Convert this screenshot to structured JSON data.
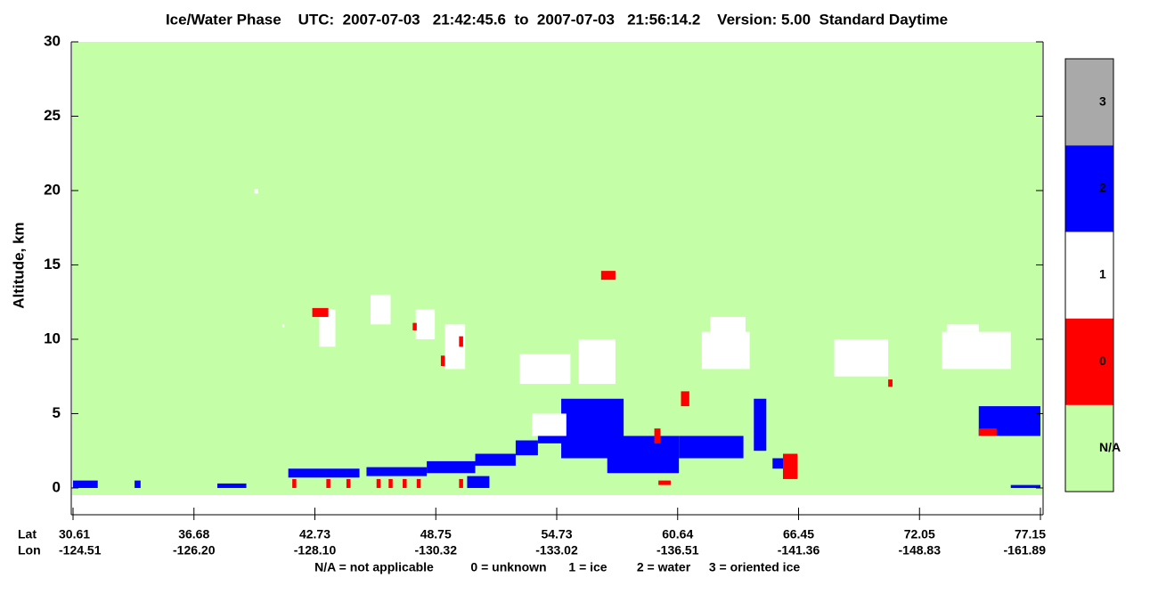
{
  "chart_data": {
    "type": "curtain",
    "title": "Ice/Water Phase    UTC:  2007-07-03   21:42:45.6  to  2007-07-03   21:56:14.2    Version: 5.00  Standard Daytime",
    "y_label": "Altitude, km",
    "x_row_labels": [
      "Lat",
      "Lon"
    ],
    "xticks": [
      30.61,
      36.68,
      42.73,
      48.75,
      54.73,
      60.64,
      66.45,
      72.05,
      77.15
    ],
    "lon_ticks": [
      -124.51,
      -126.2,
      -128.1,
      -130.32,
      -133.02,
      -136.51,
      -141.36,
      -148.83,
      -161.89
    ],
    "lon_tick_labels": [
      "-124.51",
      "-126.20",
      "-128.10",
      "-130.32",
      "-133.02",
      "-136.51",
      "-141.36",
      "-148.83",
      "-161.89"
    ],
    "ylim": [
      -1.8,
      30
    ],
    "yticks": [
      0,
      5,
      10,
      15,
      20,
      25,
      30
    ],
    "legend": {
      "categories": [
        "N/A",
        "0",
        "1",
        "2",
        "3"
      ],
      "colors": [
        "#c4ffa8",
        "#ff0000",
        "#ffffff",
        "#0000ff",
        "#a9a9a9"
      ],
      "descriptions": [
        "N/A = not applicable",
        "0 = unknown",
        "1 = ice",
        "2 = water",
        "3 = oriented ice"
      ]
    },
    "regions": [
      {
        "phase": 2,
        "lat": [
          30.61,
          31.85
        ],
        "alt": [
          0,
          0.5
        ]
      },
      {
        "phase": 2,
        "lat": [
          33.7,
          34.0
        ],
        "alt": [
          0,
          0.5
        ]
      },
      {
        "phase": 2,
        "lat": [
          37.85,
          39.3
        ],
        "alt": [
          0,
          0.3
        ]
      },
      {
        "phase": 2,
        "lat": [
          41.4,
          44.95
        ],
        "alt": [
          0.7,
          1.3
        ]
      },
      {
        "phase": 2,
        "lat": [
          45.3,
          48.3
        ],
        "alt": [
          0.8,
          1.4
        ]
      },
      {
        "phase": 2,
        "lat": [
          48.3,
          50.7
        ],
        "alt": [
          1.0,
          1.8
        ]
      },
      {
        "phase": 2,
        "lat": [
          50.7,
          52.7
        ],
        "alt": [
          1.5,
          2.3
        ]
      },
      {
        "phase": 2,
        "lat": [
          50.3,
          51.4
        ],
        "alt": [
          0,
          0.8
        ]
      },
      {
        "phase": 2,
        "lat": [
          52.7,
          53.8
        ],
        "alt": [
          2.2,
          3.2
        ]
      },
      {
        "phase": 2,
        "lat": [
          53.8,
          55.0
        ],
        "alt": [
          3,
          4.5
        ]
      },
      {
        "phase": 2,
        "lat": [
          54.95,
          58.0
        ],
        "alt": [
          2,
          6
        ]
      },
      {
        "phase": 2,
        "lat": [
          57.2,
          60.7
        ],
        "alt": [
          1,
          3.5
        ]
      },
      {
        "phase": 2,
        "lat": [
          60.7,
          63.8
        ],
        "alt": [
          2,
          3.5
        ]
      },
      {
        "phase": 2,
        "lat": [
          64.3,
          64.9
        ],
        "alt": [
          2.5,
          6
        ]
      },
      {
        "phase": 2,
        "lat": [
          65.2,
          66.1
        ],
        "alt": [
          1.3,
          2
        ]
      },
      {
        "phase": 2,
        "lat": [
          74.55,
          77.15
        ],
        "alt": [
          3.5,
          5.5
        ]
      },
      {
        "phase": 2,
        "lat": [
          75.9,
          77.15
        ],
        "alt": [
          0,
          0.2
        ]
      },
      {
        "phase": 1,
        "lat": [
          39.7,
          39.9
        ],
        "alt": [
          19.8,
          20.1
        ]
      },
      {
        "phase": 1,
        "lat": [
          42.95,
          43.75
        ],
        "alt": [
          9.5,
          12
        ]
      },
      {
        "phase": 1,
        "lat": [
          45.5,
          46.5
        ],
        "alt": [
          11,
          13
        ]
      },
      {
        "phase": 1,
        "lat": [
          47.75,
          48.7
        ],
        "alt": [
          10,
          12
        ]
      },
      {
        "phase": 1,
        "lat": [
          49.2,
          50.2
        ],
        "alt": [
          8,
          11
        ]
      },
      {
        "phase": 1,
        "lat": [
          52.9,
          55.4
        ],
        "alt": [
          7,
          9
        ]
      },
      {
        "phase": 1,
        "lat": [
          55.8,
          57.6
        ],
        "alt": [
          7,
          10
        ]
      },
      {
        "phase": 1,
        "lat": [
          61.8,
          64.1
        ],
        "alt": [
          8,
          10.5
        ]
      },
      {
        "phase": 1,
        "lat": [
          62.2,
          63.9
        ],
        "alt": [
          10,
          11.5
        ]
      },
      {
        "phase": 1,
        "lat": [
          68.1,
          70.6
        ],
        "alt": [
          7.5,
          10
        ]
      },
      {
        "phase": 1,
        "lat": [
          73.0,
          75.9
        ],
        "alt": [
          8,
          10.5
        ]
      },
      {
        "phase": 1,
        "lat": [
          73.2,
          74.55
        ],
        "alt": [
          10.5,
          11
        ]
      },
      {
        "phase": 1,
        "lat": [
          41.1,
          41.2
        ],
        "alt": [
          10.8,
          11
        ]
      },
      {
        "phase": 1,
        "lat": [
          53.5,
          55.2
        ],
        "alt": [
          3.5,
          5
        ]
      },
      {
        "phase": 0,
        "lat": [
          41.6,
          41.8
        ],
        "alt": [
          0,
          0.6
        ]
      },
      {
        "phase": 0,
        "lat": [
          43.3,
          43.5
        ],
        "alt": [
          0,
          0.6
        ]
      },
      {
        "phase": 0,
        "lat": [
          44.3,
          44.5
        ],
        "alt": [
          0,
          0.6
        ]
      },
      {
        "phase": 0,
        "lat": [
          45.8,
          46.0
        ],
        "alt": [
          0,
          0.6
        ]
      },
      {
        "phase": 0,
        "lat": [
          46.4,
          46.6
        ],
        "alt": [
          0,
          0.6
        ]
      },
      {
        "phase": 0,
        "lat": [
          47.1,
          47.3
        ],
        "alt": [
          0,
          0.6
        ]
      },
      {
        "phase": 0,
        "lat": [
          47.8,
          48.0
        ],
        "alt": [
          0,
          0.6
        ]
      },
      {
        "phase": 0,
        "lat": [
          49.9,
          50.1
        ],
        "alt": [
          0,
          0.6
        ]
      },
      {
        "phase": 0,
        "lat": [
          56.9,
          57.6
        ],
        "alt": [
          14.0,
          14.6
        ]
      },
      {
        "phase": 0,
        "lat": [
          65.7,
          66.4
        ],
        "alt": [
          0.6,
          2.3
        ]
      },
      {
        "phase": 0,
        "lat": [
          42.6,
          43.4
        ],
        "alt": [
          11.5,
          12.1
        ]
      },
      {
        "phase": 0,
        "lat": [
          47.6,
          47.8
        ],
        "alt": [
          10.6,
          11.1
        ]
      },
      {
        "phase": 0,
        "lat": [
          49.0,
          49.2
        ],
        "alt": [
          8.2,
          8.9
        ]
      },
      {
        "phase": 0,
        "lat": [
          49.9,
          50.1
        ],
        "alt": [
          9.5,
          10.2
        ]
      },
      {
        "phase": 0,
        "lat": [
          74.55,
          75.3
        ],
        "alt": [
          3.5,
          4
        ]
      },
      {
        "phase": 0,
        "lat": [
          59.7,
          60.3
        ],
        "alt": [
          0.2,
          0.5
        ]
      },
      {
        "phase": 0,
        "lat": [
          59.5,
          59.8
        ],
        "alt": [
          3,
          4
        ]
      },
      {
        "phase": 0,
        "lat": [
          60.8,
          61.2
        ],
        "alt": [
          5.5,
          6.5
        ]
      },
      {
        "phase": 0,
        "lat": [
          70.6,
          70.8
        ],
        "alt": [
          6.8,
          7.3
        ]
      }
    ]
  }
}
